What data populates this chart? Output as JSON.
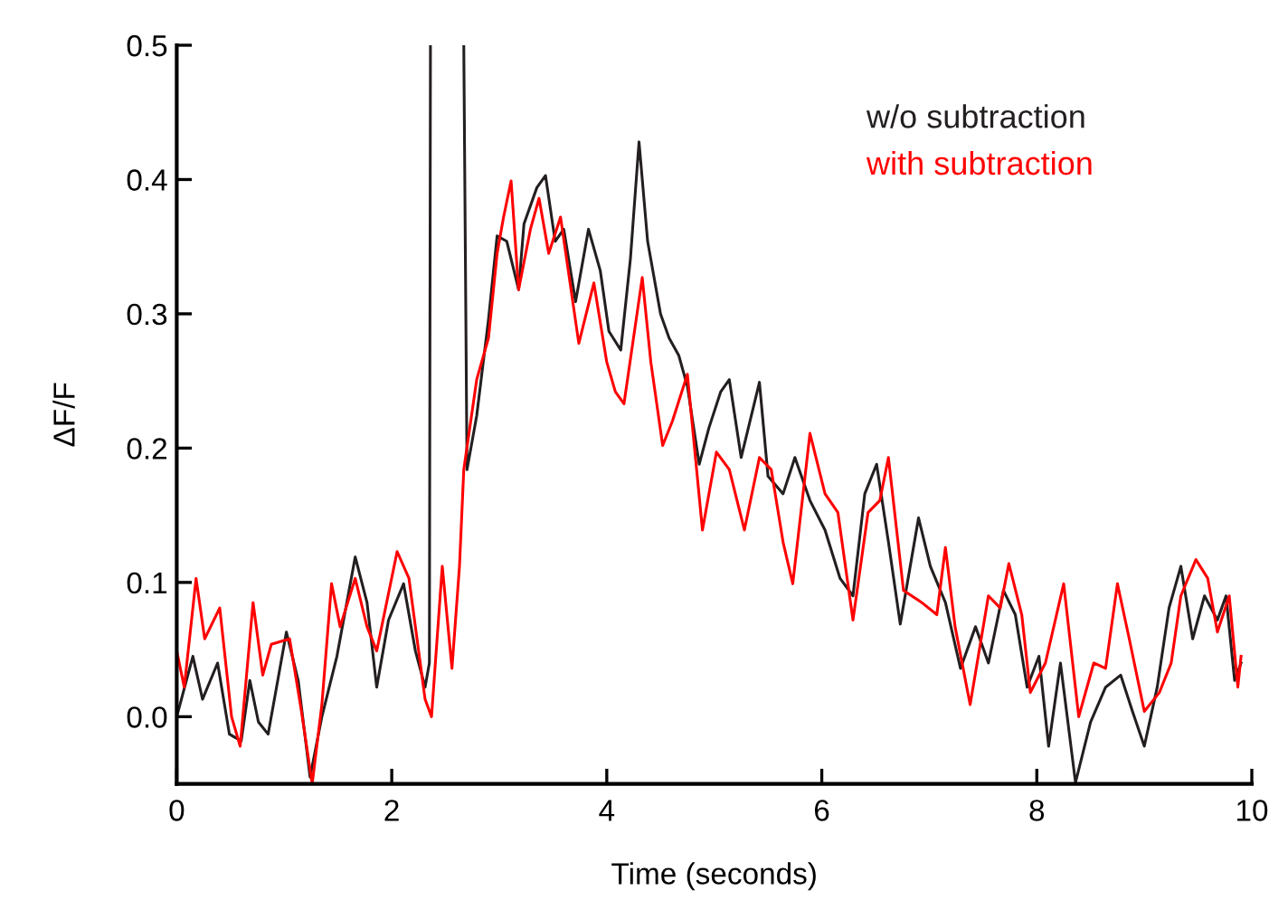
{
  "chart_data": {
    "type": "line",
    "xlabel": "Time (seconds)",
    "ylabel": "ΔF/F",
    "xlim": [
      0,
      10
    ],
    "xticks": [
      0,
      2,
      4,
      6,
      8,
      10
    ],
    "ylim": [
      -0.05,
      0.5
    ],
    "yticks": [
      {
        "value": 0,
        "label": "0.0"
      },
      0.1,
      0.2,
      0.3,
      0.4,
      0.5
    ],
    "legend": "top right",
    "series": [
      {
        "name": "w/o subtraction",
        "color": "#231f20",
        "x": [
          0.0,
          0.15,
          0.24,
          0.38,
          0.49,
          0.6,
          0.68,
          0.76,
          0.85,
          1.02,
          1.13,
          1.24,
          1.35,
          1.49,
          1.66,
          1.77,
          1.86,
          1.97,
          2.11,
          2.22,
          2.31,
          2.35,
          2.36,
          2.37,
          2.66,
          2.67,
          2.7,
          2.79,
          2.9,
          2.98,
          3.07,
          3.18,
          3.23,
          3.35,
          3.43,
          3.52,
          3.6,
          3.71,
          3.83,
          3.94,
          4.02,
          4.13,
          4.22,
          4.3,
          4.38,
          4.5,
          4.58,
          4.67,
          4.75,
          4.86,
          4.95,
          5.06,
          5.14,
          5.25,
          5.42,
          5.5,
          5.64,
          5.75,
          5.89,
          6.03,
          6.17,
          6.29,
          6.4,
          6.51,
          6.62,
          6.73,
          6.9,
          7.01,
          7.15,
          7.29,
          7.43,
          7.55,
          7.69,
          7.8,
          7.91,
          8.02,
          8.11,
          8.22,
          8.36,
          8.5,
          8.64,
          8.78,
          8.89,
          9.0,
          9.12,
          9.23,
          9.34,
          9.45,
          9.56,
          9.68,
          9.76,
          9.84,
          9.9
        ],
        "values": [
          0.0,
          0.045,
          0.013,
          0.04,
          -0.013,
          -0.018,
          0.027,
          -0.004,
          -0.013,
          0.063,
          0.027,
          -0.045,
          0.0,
          0.045,
          0.119,
          0.085,
          0.022,
          0.072,
          0.099,
          0.049,
          0.022,
          0.04,
          0.5,
          null,
          null,
          0.5,
          0.184,
          0.224,
          0.296,
          0.358,
          0.354,
          0.318,
          0.367,
          0.394,
          0.403,
          0.354,
          0.363,
          0.309,
          0.363,
          0.332,
          0.287,
          0.273,
          0.341,
          0.428,
          0.354,
          0.3,
          0.282,
          0.269,
          0.246,
          0.188,
          0.215,
          0.242,
          0.251,
          0.193,
          0.249,
          0.179,
          0.166,
          0.193,
          0.161,
          0.139,
          0.103,
          0.09,
          0.166,
          0.188,
          0.13,
          0.069,
          0.148,
          0.112,
          0.085,
          0.036,
          0.067,
          0.04,
          0.094,
          0.076,
          0.022,
          0.045,
          -0.022,
          0.04,
          -0.049,
          -0.004,
          0.022,
          0.031,
          0.004,
          -0.022,
          0.022,
          0.081,
          0.112,
          0.058,
          0.09,
          0.072,
          0.09,
          0.027,
          0.04
        ]
      },
      {
        "name": "with subtraction",
        "color": "#ff0000",
        "x": [
          0.0,
          0.07,
          0.18,
          0.26,
          0.4,
          0.51,
          0.59,
          0.71,
          0.8,
          0.88,
          1.05,
          1.16,
          1.26,
          1.35,
          1.44,
          1.52,
          1.66,
          1.77,
          1.86,
          2.05,
          2.16,
          2.31,
          2.37,
          2.47,
          2.56,
          2.63,
          2.67,
          2.79,
          2.9,
          2.98,
          3.04,
          3.11,
          3.18,
          3.29,
          3.37,
          3.46,
          3.57,
          3.74,
          3.88,
          4.0,
          4.08,
          4.16,
          4.33,
          4.41,
          4.52,
          4.61,
          4.75,
          4.89,
          5.02,
          5.14,
          5.28,
          5.42,
          5.53,
          5.64,
          5.73,
          5.89,
          6.03,
          6.15,
          6.29,
          6.43,
          6.54,
          6.62,
          6.76,
          6.93,
          7.07,
          7.15,
          7.24,
          7.38,
          7.55,
          7.66,
          7.74,
          7.86,
          7.94,
          8.08,
          8.25,
          8.39,
          8.53,
          8.64,
          8.75,
          8.86,
          9.0,
          9.14,
          9.25,
          9.34,
          9.48,
          9.59,
          9.68,
          9.79,
          9.87,
          9.9
        ],
        "values": [
          0.049,
          0.022,
          0.103,
          0.058,
          0.081,
          0.0,
          -0.022,
          0.085,
          0.031,
          0.054,
          0.058,
          0.004,
          -0.05,
          0.009,
          0.099,
          0.067,
          0.103,
          0.067,
          0.049,
          0.123,
          0.103,
          0.013,
          0.0,
          0.112,
          0.036,
          0.112,
          0.184,
          0.251,
          0.282,
          0.345,
          0.372,
          0.399,
          0.318,
          0.363,
          0.386,
          0.345,
          0.372,
          0.278,
          0.323,
          0.264,
          0.242,
          0.233,
          0.327,
          0.264,
          0.202,
          0.22,
          0.255,
          0.139,
          0.197,
          0.184,
          0.139,
          0.193,
          0.184,
          0.13,
          0.099,
          0.211,
          0.166,
          0.152,
          0.072,
          0.152,
          0.161,
          0.193,
          0.094,
          0.085,
          0.076,
          0.126,
          0.067,
          0.009,
          0.09,
          0.081,
          0.114,
          0.076,
          0.018,
          0.04,
          0.099,
          0.0,
          0.04,
          0.036,
          0.099,
          0.058,
          0.004,
          0.018,
          0.04,
          0.09,
          0.117,
          0.103,
          0.063,
          0.09,
          0.022,
          0.045
        ]
      }
    ]
  }
}
